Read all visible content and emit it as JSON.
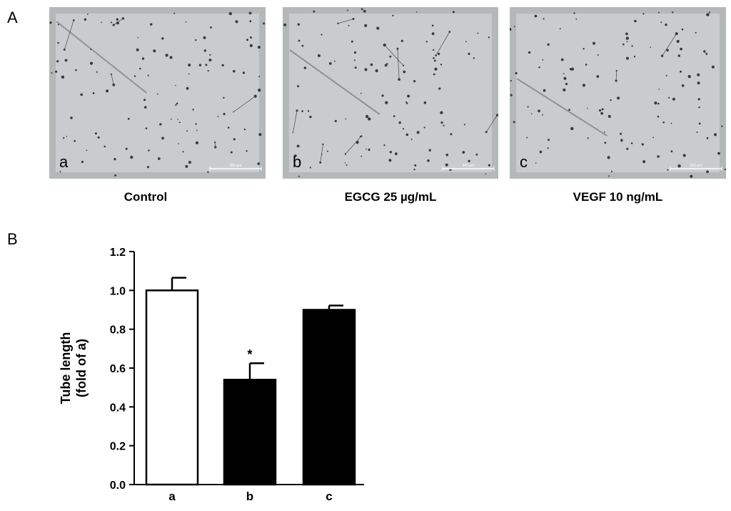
{
  "panel_labels": {
    "a": "A",
    "b": "B"
  },
  "micrographs": [
    {
      "letter": "a",
      "caption": "Control",
      "scale_text": "300 µm"
    },
    {
      "letter": "b",
      "caption": "EGCG 25 µg/mL",
      "scale_text": "300 µm"
    },
    {
      "letter": "c",
      "caption": "VEGF 10 ng/mL",
      "scale_text": "300 µm"
    }
  ],
  "colors": {
    "micro_bg": "#c9ccce",
    "network": "#3a3a3a",
    "bar_black": "#000000",
    "bar_white": "#ffffff"
  },
  "chart_data": {
    "type": "bar",
    "categories": [
      "a",
      "b",
      "c"
    ],
    "values": [
      1.0,
      0.54,
      0.9
    ],
    "errors": [
      0.065,
      0.085,
      0.022
    ],
    "fills": [
      "#ffffff",
      "#000000",
      "#000000"
    ],
    "annotations": [
      "",
      "*",
      ""
    ],
    "ylabel": "Tube length\n(fold of a)",
    "ylim": [
      0,
      1.2
    ],
    "yticks": [
      "0.0",
      "0.2",
      "0.4",
      "0.6",
      "0.8",
      "1.0",
      "1.2"
    ]
  }
}
